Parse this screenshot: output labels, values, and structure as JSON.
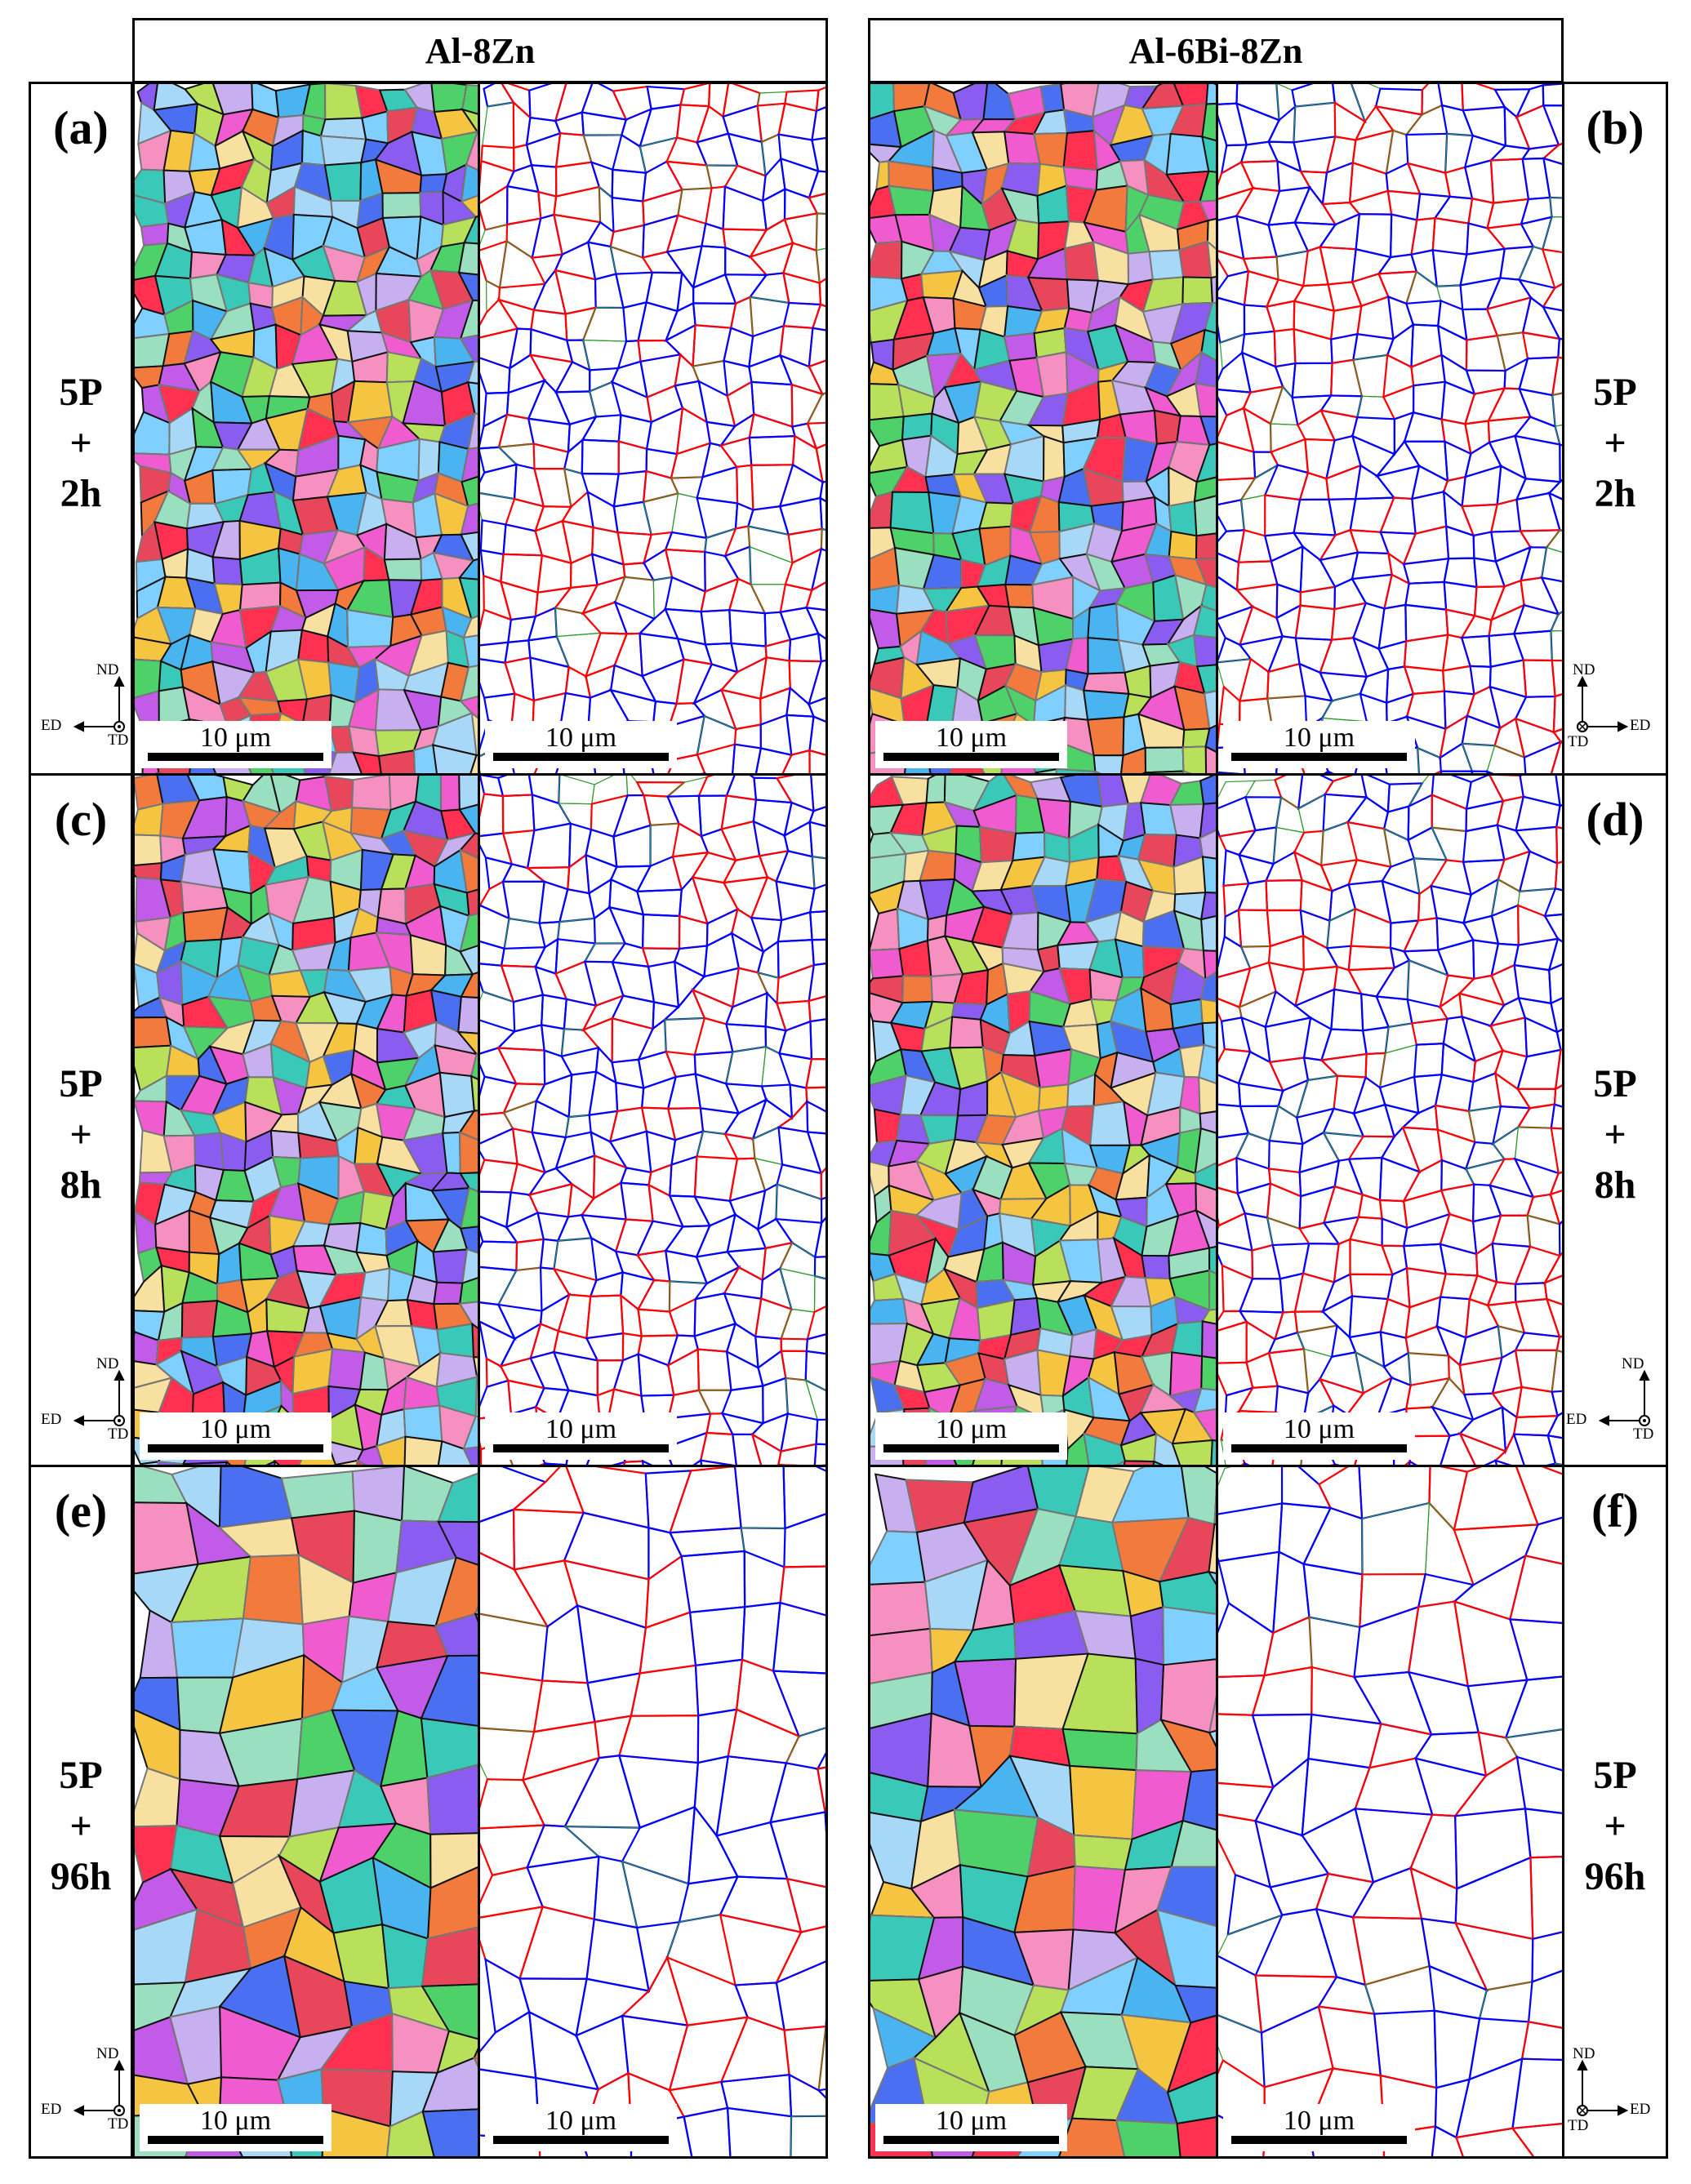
{
  "headers": {
    "left": "Al-8Zn",
    "right": "Al-6Bi-8Zn"
  },
  "rows": [
    {
      "left_label": "(a)",
      "right_label": "(b)",
      "condition": [
        "5P",
        "+",
        "2h"
      ]
    },
    {
      "left_label": "(c)",
      "right_label": "(d)",
      "condition": [
        "5P",
        "+",
        "8h"
      ]
    },
    {
      "left_label": "(e)",
      "right_label": "(f)",
      "condition": [
        "5P",
        "+",
        "96h"
      ]
    }
  ],
  "scale_bar": "10 μm",
  "axes": {
    "nd": "ND",
    "ed": "ED",
    "td": "TD"
  },
  "colors": {
    "hagb": "#0000ff",
    "lagb": "#ff0000",
    "subgrain": "#2a9a2a"
  }
}
